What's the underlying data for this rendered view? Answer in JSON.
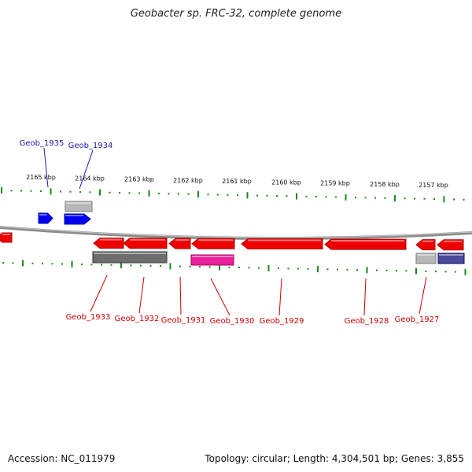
{
  "title": "Geobacter sp. FRC-32, complete genome",
  "footer": {
    "accession": "Accession: NC_011979",
    "summary": "Topology: circular; Length: 4,304,501 bp; Genes: 3,855"
  },
  "colors": {
    "forward_gene": "#0000ee",
    "reverse_gene": "#ee0000",
    "label_forward": "#1a1aa8",
    "label_reverse": "#cc0000",
    "tick": "#1a8a1a",
    "backbone": "#8a8a8a",
    "gray_feature": "#b8b8b8",
    "dark_gray_feature": "#6e6e6e",
    "magenta_feature": "#e8209a",
    "navy_feature": "#4a4a9a"
  },
  "scale_labels": [
    {
      "text": "2165 kbp"
    },
    {
      "text": "2164 kbp"
    },
    {
      "text": "2163 kbp"
    },
    {
      "text": "2162 kbp"
    },
    {
      "text": "2161 kbp"
    },
    {
      "text": "2160 kbp"
    },
    {
      "text": "2159 kbp"
    },
    {
      "text": "2158 kbp"
    },
    {
      "text": "2157 kbp"
    }
  ],
  "genes_forward": [
    {
      "label": "Geob_1935"
    },
    {
      "label": "Geob_1934"
    }
  ],
  "genes_reverse": [
    {
      "label": "Geob_1933"
    },
    {
      "label": "Geob_1932"
    },
    {
      "label": "Geob_1931"
    },
    {
      "label": "Geob_1930"
    },
    {
      "label": "Geob_1929"
    },
    {
      "label": "Geob_1928"
    },
    {
      "label": "Geob_1927"
    }
  ]
}
